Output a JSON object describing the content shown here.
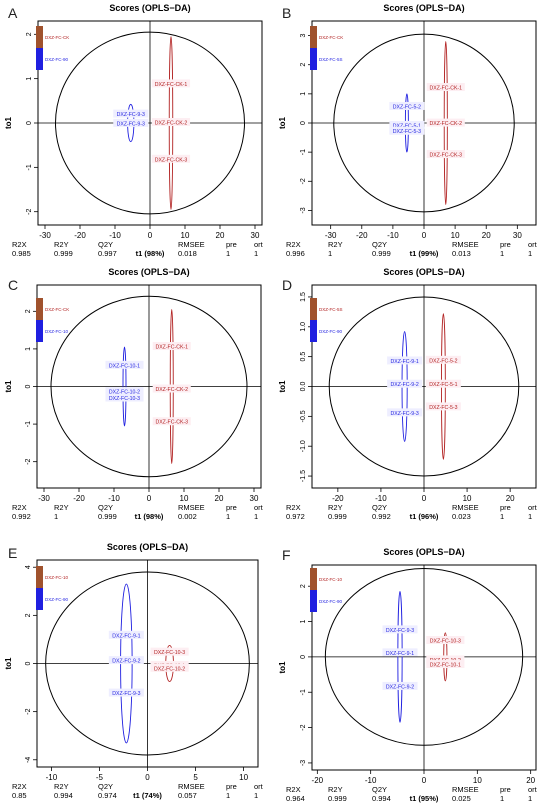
{
  "figure": {
    "panel_letters": [
      "A",
      "B",
      "C",
      "D",
      "E",
      "F"
    ]
  },
  "chart_data": [
    {
      "panel": "A",
      "type": "scatter",
      "title": "Scores (OPLS−DA)",
      "xlabel": "t1 (98%)",
      "ylabel": "to1",
      "xlim": [
        -32,
        32
      ],
      "ylim": [
        -2.3,
        2.3
      ],
      "xticks": [
        -30,
        -20,
        -10,
        0,
        10,
        20,
        30
      ],
      "yticks": [
        -2,
        -1,
        0,
        1,
        2
      ],
      "ellipse": {
        "rx": 27,
        "ry": 2.05
      },
      "legend": [
        "DXZ-FC-CK",
        "DXZ-FC-90"
      ],
      "series": [
        {
          "name": "DXZ-FC-90",
          "color": "#1f1fe0",
          "group_ellipse": {
            "cx": -5.5,
            "cy": 0,
            "rx": 0.9,
            "ry": 0.42
          },
          "points": [
            {
              "label": "DXZ-FC-9-3",
              "x": -5.5,
              "y": 0.19
            },
            {
              "label": "DXZ-FC-9-3",
              "x": -5.5,
              "y": -0.02
            }
          ]
        },
        {
          "name": "DXZ-FC-CK",
          "color": "#b22222",
          "group_ellipse": {
            "cx": 6,
            "cy": 0,
            "rx": 0.5,
            "ry": 1.95
          },
          "points": [
            {
              "label": "DXZ-FC-CK-1",
              "x": 6,
              "y": 0.87
            },
            {
              "label": "DXZ-FC-CK-2",
              "x": 6,
              "y": 0
            },
            {
              "label": "DXZ-FC-CK-3",
              "x": 6,
              "y": -0.83
            }
          ]
        }
      ],
      "stats": {
        "R2X": "0.985",
        "R2Y": "0.999",
        "Q2Y": "0.997",
        "RMSEE": "0.018",
        "pre": "1",
        "ort": "1"
      }
    },
    {
      "panel": "B",
      "type": "scatter",
      "title": "Scores (OPLS−DA)",
      "xlabel": "t1 (99%)",
      "ylabel": "to1",
      "xlim": [
        -36,
        36
      ],
      "ylim": [
        -3.5,
        3.5
      ],
      "xticks": [
        -30,
        -20,
        -10,
        0,
        10,
        20,
        30
      ],
      "yticks": [
        -3,
        -2,
        -1,
        0,
        1,
        2,
        3
      ],
      "ellipse": {
        "rx": 29,
        "ry": 3.05
      },
      "legend": [
        "DXZ-FC-CK",
        "DXZ-FC-5S"
      ],
      "series": [
        {
          "name": "DXZ-FC-5S",
          "color": "#1f1fe0",
          "group_ellipse": {
            "cx": -5.5,
            "cy": 0,
            "rx": 0.45,
            "ry": 1.0
          },
          "points": [
            {
              "label": "DXZ-FC-5-2",
              "x": -5.5,
              "y": 0.55
            },
            {
              "label": "DXZ-FC-5-1",
              "x": -5.5,
              "y": -0.1
            },
            {
              "label": "DXZ-FC-5-3",
              "x": -5.5,
              "y": -0.3
            }
          ]
        },
        {
          "name": "DXZ-FC-CK",
          "color": "#b22222",
          "group_ellipse": {
            "cx": 7,
            "cy": 0,
            "rx": 0.5,
            "ry": 2.8
          },
          "points": [
            {
              "label": "DXZ-FC-CK-1",
              "x": 7,
              "y": 1.2
            },
            {
              "label": "DXZ-FC-CK-2",
              "x": 7,
              "y": -0.02
            },
            {
              "label": "DXZ-FC-CK-3",
              "x": 7,
              "y": -1.1
            }
          ]
        }
      ],
      "stats": {
        "R2X": "0.996",
        "R2Y": "1",
        "Q2Y": "0.999",
        "RMSEE": "0.013",
        "pre": "1",
        "ort": "1"
      }
    },
    {
      "panel": "C",
      "type": "scatter",
      "title": "Scores (OPLS−DA)",
      "xlabel": "t1 (98%)",
      "ylabel": "to1",
      "xlim": [
        -32,
        32
      ],
      "ylim": [
        -2.7,
        2.7
      ],
      "xticks": [
        -30,
        -20,
        -10,
        0,
        10,
        20,
        30
      ],
      "yticks": [
        -2,
        -1,
        0,
        1,
        2
      ],
      "ellipse": {
        "rx": 28,
        "ry": 2.4
      },
      "legend": [
        "DXZ-FC-CK",
        "DXZ-FC-10"
      ],
      "series": [
        {
          "name": "DXZ-FC-10",
          "color": "#1f1fe0",
          "group_ellipse": {
            "cx": -7,
            "cy": 0,
            "rx": 0.2,
            "ry": 1.05
          },
          "points": [
            {
              "label": "DXZ-FC-10-1",
              "x": -7,
              "y": 0.55
            },
            {
              "label": "DXZ-FC-10-2",
              "x": -7,
              "y": -0.15
            },
            {
              "label": "DXZ-FC-10-3",
              "x": -7,
              "y": -0.32
            }
          ]
        },
        {
          "name": "DXZ-FC-CK",
          "color": "#b22222",
          "group_ellipse": {
            "cx": 6.5,
            "cy": 0,
            "rx": 0.35,
            "ry": 2.05
          },
          "points": [
            {
              "label": "DXZ-FC-CK-1",
              "x": 6.5,
              "y": 1.05
            },
            {
              "label": "DXZ-FC-CK-2",
              "x": 6.5,
              "y": -0.08
            },
            {
              "label": "DXZ-FC-CK-3",
              "x": 6.5,
              "y": -0.95
            }
          ]
        }
      ],
      "stats": {
        "R2X": "0.992",
        "R2Y": "1",
        "Q2Y": "0.999",
        "RMSEE": "0.002",
        "pre": "1",
        "ort": "1"
      }
    },
    {
      "panel": "D",
      "type": "scatter",
      "title": "Scores (OPLS−DA)",
      "xlabel": "t1 (96%)",
      "ylabel": "to1",
      "xlim": [
        -26,
        26
      ],
      "ylim": [
        -1.7,
        1.7
      ],
      "xticks": [
        -20,
        -10,
        0,
        10,
        20
      ],
      "yticks": [
        -1.5,
        -1.0,
        -0.5,
        0.0,
        0.5,
        1.0,
        1.5
      ],
      "ellipse": {
        "rx": 22,
        "ry": 1.5
      },
      "legend": [
        "DXZ-FC-5S",
        "DXZ-FC-90"
      ],
      "series": [
        {
          "name": "DXZ-FC-90",
          "color": "#1f1fe0",
          "group_ellipse": {
            "cx": -4.5,
            "cy": 0,
            "rx": 0.6,
            "ry": 0.92
          },
          "points": [
            {
              "label": "DXZ-FC-9-1",
              "x": -4.5,
              "y": 0.42
            },
            {
              "label": "DXZ-FC-9-2",
              "x": -4.5,
              "y": 0.03
            },
            {
              "label": "DXZ-FC-9-3",
              "x": -4.5,
              "y": -0.45
            }
          ]
        },
        {
          "name": "DXZ-FC-5S",
          "color": "#b22222",
          "group_ellipse": {
            "cx": 4.5,
            "cy": 0,
            "rx": 0.45,
            "ry": 1.22
          },
          "points": [
            {
              "label": "DXZ-FC-5-2",
              "x": 4.5,
              "y": 0.43
            },
            {
              "label": "DXZ-FC-5-1",
              "x": 4.5,
              "y": 0.03
            },
            {
              "label": "DXZ-FC-5-3",
              "x": 4.5,
              "y": -0.35
            }
          ]
        }
      ],
      "stats": {
        "R2X": "0.972",
        "R2Y": "0.999",
        "Q2Y": "0.992",
        "RMSEE": "0.023",
        "pre": "1",
        "ort": "1"
      }
    },
    {
      "panel": "E",
      "type": "scatter",
      "title": "Scores (OPLS−DA)",
      "xlabel": "t1 (74%)",
      "ylabel": "to1",
      "xlim": [
        -11.5,
        11.5
      ],
      "ylim": [
        -4.3,
        4.3
      ],
      "xticks": [
        -10,
        -5,
        0,
        5,
        10
      ],
      "yticks": [
        -4,
        -2,
        0,
        2,
        4
      ],
      "ellipse": {
        "rx": 10.6,
        "ry": 3.8
      },
      "legend": [
        "DXZ-FC-10",
        "DXZ-FC-90"
      ],
      "series": [
        {
          "name": "DXZ-FC-90",
          "color": "#1f1fe0",
          "group_ellipse": {
            "cx": -2.2,
            "cy": 0,
            "rx": 0.6,
            "ry": 3.3
          },
          "points": [
            {
              "label": "DXZ-FC-9-1",
              "x": -2.2,
              "y": 1.15
            },
            {
              "label": "DXZ-FC-9-2",
              "x": -2.2,
              "y": 0.1
            },
            {
              "label": "DXZ-FC-9-3",
              "x": -2.2,
              "y": -1.25
            }
          ]
        },
        {
          "name": "DXZ-FC-10",
          "color": "#b22222",
          "group_ellipse": {
            "cx": 2.3,
            "cy": 0,
            "rx": 0.4,
            "ry": 0.75
          },
          "points": [
            {
              "label": "DXZ-FC-10-3",
              "x": 2.3,
              "y": 0.45
            },
            {
              "label": "DXZ-FC-10-1",
              "x": 2.3,
              "y": -0.1
            },
            {
              "label": "DXZ-FC-10-2",
              "x": 2.3,
              "y": -0.22
            }
          ]
        }
      ],
      "stats": {
        "R2X": "0.85",
        "R2Y": "0.994",
        "Q2Y": "0.974",
        "RMSEE": "0.057",
        "pre": "1",
        "ort": "1"
      }
    },
    {
      "panel": "F",
      "type": "scatter",
      "title": "Scores (OPLS−DA)",
      "xlabel": "t1 (95%)",
      "ylabel": "to1",
      "xlim": [
        -21,
        21
      ],
      "ylim": [
        -3.2,
        2.6
      ],
      "xticks": [
        -20,
        -10,
        0,
        10,
        20
      ],
      "yticks": [
        -3,
        -2,
        -1,
        0,
        1,
        2
      ],
      "ellipse": {
        "rx": 18.5,
        "ry": 2.5
      },
      "legend": [
        "DXZ-FC-10",
        "DXZ-FC-90"
      ],
      "series": [
        {
          "name": "DXZ-FC-90",
          "color": "#1f1fe0",
          "group_ellipse": {
            "cx": -4.5,
            "cy": 0,
            "rx": 0.4,
            "ry": 1.85
          },
          "points": [
            {
              "label": "DXZ-FC-9-3",
              "x": -4.5,
              "y": 0.75
            },
            {
              "label": "DXZ-FC-9-1",
              "x": -4.5,
              "y": 0.1
            },
            {
              "label": "DXZ-FC-9-2",
              "x": -4.5,
              "y": -0.85
            }
          ]
        },
        {
          "name": "DXZ-FC-10",
          "color": "#b22222",
          "group_ellipse": {
            "cx": 4,
            "cy": 0,
            "rx": 0.3,
            "ry": 0.68
          },
          "points": [
            {
              "label": "DXZ-FC-10-3",
              "x": 4,
              "y": 0.45
            },
            {
              "label": "DXZ-FC-10-2",
              "x": 4,
              "y": -0.1
            },
            {
              "label": "DXZ-FC-10-1",
              "x": 4,
              "y": -0.23
            }
          ]
        }
      ],
      "stats": {
        "R2X": "0.964",
        "R2Y": "0.999",
        "Q2Y": "0.994",
        "RMSEE": "0.025",
        "pre": "1",
        "ort": "1"
      }
    }
  ]
}
